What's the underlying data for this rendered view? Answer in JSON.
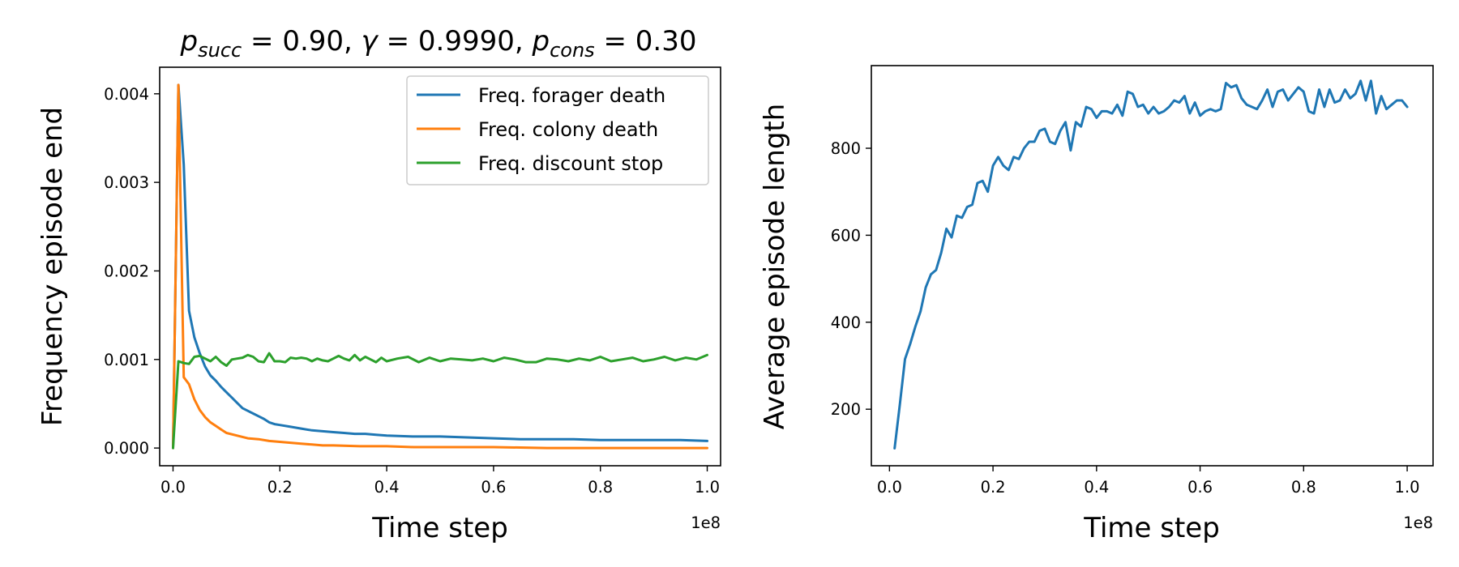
{
  "chart_data": [
    {
      "type": "line",
      "title_parts": {
        "v1": "p",
        "s1": "succ",
        "t1": " = 0.90, ",
        "v2": "γ",
        "t2": " = 0.9990, ",
        "v3": "p",
        "s3": "cons",
        "t3": " = 0.30"
      },
      "xlabel": "Time step",
      "ylabel": "Frequency episode end",
      "x_offset_label": "1e8",
      "xlim": [
        -0.025,
        1.025
      ],
      "ylim": [
        -0.0002,
        0.0043
      ],
      "x_ticks": [
        0.0,
        0.2,
        0.4,
        0.6,
        0.8,
        1.0
      ],
      "x_tick_labels": [
        "0.0",
        "0.2",
        "0.4",
        "0.6",
        "0.8",
        "1.0"
      ],
      "y_ticks": [
        0.0,
        0.001,
        0.002,
        0.003,
        0.004
      ],
      "y_tick_labels": [
        "0.000",
        "0.001",
        "0.002",
        "0.003",
        "0.004"
      ],
      "grid": false,
      "legend_position": "top-right",
      "series": [
        {
          "name": "Freq. forager death",
          "color": "#1f77b4",
          "x": [
            0,
            0.01,
            0.02,
            0.03,
            0.04,
            0.05,
            0.06,
            0.07,
            0.08,
            0.09,
            0.1,
            0.11,
            0.12,
            0.13,
            0.14,
            0.15,
            0.16,
            0.17,
            0.18,
            0.19,
            0.2,
            0.22,
            0.24,
            0.26,
            0.28,
            0.3,
            0.32,
            0.34,
            0.36,
            0.38,
            0.4,
            0.45,
            0.5,
            0.55,
            0.6,
            0.65,
            0.7,
            0.75,
            0.8,
            0.85,
            0.9,
            0.95,
            1.0
          ],
          "values": [
            0.0,
            0.0041,
            0.0032,
            0.00155,
            0.00125,
            0.00107,
            0.00092,
            0.00082,
            0.00076,
            0.00069,
            0.00063,
            0.00057,
            0.00051,
            0.00045,
            0.00042,
            0.00039,
            0.00036,
            0.00033,
            0.00029,
            0.00027,
            0.00026,
            0.00024,
            0.00022,
            0.0002,
            0.00019,
            0.00018,
            0.00017,
            0.00016,
            0.00016,
            0.00015,
            0.00014,
            0.00013,
            0.00013,
            0.00012,
            0.00011,
            0.0001,
            0.0001,
            0.0001,
            9e-05,
            9e-05,
            9e-05,
            9e-05,
            8e-05
          ]
        },
        {
          "name": "Freq. colony death",
          "color": "#ff7f0e",
          "x": [
            0,
            0.01,
            0.02,
            0.03,
            0.04,
            0.05,
            0.06,
            0.07,
            0.08,
            0.09,
            0.1,
            0.12,
            0.14,
            0.16,
            0.18,
            0.2,
            0.22,
            0.24,
            0.26,
            0.28,
            0.3,
            0.35,
            0.4,
            0.45,
            0.5,
            0.6,
            0.7,
            0.8,
            0.9,
            1.0
          ],
          "values": [
            0.0,
            0.0041,
            0.0008,
            0.00072,
            0.00055,
            0.00043,
            0.00035,
            0.00029,
            0.00025,
            0.00021,
            0.00017,
            0.00014,
            0.00011,
            0.0001,
            8e-05,
            7e-05,
            6e-05,
            5e-05,
            4e-05,
            3e-05,
            3e-05,
            2e-05,
            2e-05,
            1e-05,
            1e-05,
            1e-05,
            0.0,
            0.0,
            0.0,
            0.0
          ]
        },
        {
          "name": "Freq. discount stop",
          "color": "#2ca02c",
          "x": [
            0,
            0.01,
            0.02,
            0.03,
            0.04,
            0.05,
            0.06,
            0.07,
            0.08,
            0.09,
            0.1,
            0.11,
            0.12,
            0.13,
            0.14,
            0.15,
            0.16,
            0.17,
            0.18,
            0.19,
            0.2,
            0.21,
            0.22,
            0.23,
            0.24,
            0.25,
            0.26,
            0.27,
            0.28,
            0.29,
            0.3,
            0.31,
            0.32,
            0.33,
            0.34,
            0.35,
            0.36,
            0.37,
            0.38,
            0.39,
            0.4,
            0.42,
            0.44,
            0.46,
            0.48,
            0.5,
            0.52,
            0.54,
            0.56,
            0.58,
            0.6,
            0.62,
            0.64,
            0.66,
            0.68,
            0.7,
            0.72,
            0.74,
            0.76,
            0.78,
            0.8,
            0.82,
            0.84,
            0.86,
            0.88,
            0.9,
            0.92,
            0.94,
            0.96,
            0.98,
            1.0
          ],
          "values": [
            0.0,
            0.00098,
            0.00096,
            0.00095,
            0.00103,
            0.00104,
            0.00101,
            0.00098,
            0.00103,
            0.00097,
            0.00093,
            0.001,
            0.00101,
            0.00102,
            0.00105,
            0.00103,
            0.00098,
            0.00097,
            0.00107,
            0.00098,
            0.00098,
            0.00097,
            0.00102,
            0.00101,
            0.00102,
            0.00101,
            0.00098,
            0.00101,
            0.00099,
            0.00098,
            0.00101,
            0.00104,
            0.00101,
            0.00099,
            0.00105,
            0.00099,
            0.00103,
            0.001,
            0.00097,
            0.00102,
            0.00098,
            0.00101,
            0.00103,
            0.00097,
            0.00102,
            0.00098,
            0.00101,
            0.001,
            0.00099,
            0.00101,
            0.00098,
            0.00102,
            0.001,
            0.00097,
            0.00097,
            0.00101,
            0.001,
            0.00098,
            0.00101,
            0.00099,
            0.00103,
            0.00098,
            0.001,
            0.00102,
            0.00098,
            0.001,
            0.00103,
            0.00099,
            0.00102,
            0.001,
            0.00105
          ]
        }
      ]
    },
    {
      "type": "line",
      "xlabel": "Time step",
      "ylabel": "Average episode length",
      "x_offset_label": "1e8",
      "xlim": [
        -0.035,
        1.05
      ],
      "ylim": [
        70,
        990
      ],
      "x_ticks": [
        0.0,
        0.2,
        0.4,
        0.6,
        0.8,
        1.0
      ],
      "x_tick_labels": [
        "0.0",
        "0.2",
        "0.4",
        "0.6",
        "0.8",
        "1.0"
      ],
      "y_ticks": [
        200,
        400,
        600,
        800
      ],
      "y_tick_labels": [
        "200",
        "400",
        "600",
        "800"
      ],
      "grid": false,
      "series": [
        {
          "color": "#1f77b4",
          "x": [
            0.01,
            0.02,
            0.03,
            0.04,
            0.05,
            0.06,
            0.07,
            0.08,
            0.09,
            0.1,
            0.11,
            0.12,
            0.13,
            0.14,
            0.15,
            0.16,
            0.17,
            0.18,
            0.19,
            0.2,
            0.21,
            0.22,
            0.23,
            0.24,
            0.25,
            0.26,
            0.27,
            0.28,
            0.29,
            0.3,
            0.31,
            0.32,
            0.33,
            0.34,
            0.35,
            0.36,
            0.37,
            0.38,
            0.39,
            0.4,
            0.41,
            0.42,
            0.43,
            0.44,
            0.45,
            0.46,
            0.47,
            0.48,
            0.49,
            0.5,
            0.51,
            0.52,
            0.53,
            0.54,
            0.55,
            0.56,
            0.57,
            0.58,
            0.59,
            0.6,
            0.61,
            0.62,
            0.63,
            0.64,
            0.65,
            0.66,
            0.67,
            0.68,
            0.69,
            0.7,
            0.71,
            0.72,
            0.73,
            0.74,
            0.75,
            0.76,
            0.77,
            0.78,
            0.79,
            0.8,
            0.81,
            0.82,
            0.83,
            0.84,
            0.85,
            0.86,
            0.87,
            0.88,
            0.89,
            0.9,
            0.91,
            0.92,
            0.93,
            0.94,
            0.95,
            0.96,
            0.97,
            0.98,
            0.99,
            1.0
          ],
          "values": [
            110,
            210,
            315,
            350,
            390,
            425,
            480,
            510,
            520,
            560,
            615,
            595,
            645,
            640,
            665,
            670,
            720,
            725,
            700,
            760,
            780,
            760,
            750,
            780,
            775,
            800,
            815,
            815,
            840,
            845,
            815,
            810,
            840,
            860,
            795,
            860,
            850,
            895,
            890,
            870,
            885,
            885,
            880,
            900,
            875,
            930,
            925,
            895,
            900,
            880,
            895,
            880,
            885,
            895,
            910,
            905,
            920,
            880,
            905,
            875,
            885,
            890,
            885,
            890,
            950,
            940,
            945,
            915,
            900,
            895,
            890,
            910,
            935,
            895,
            930,
            935,
            910,
            925,
            940,
            930,
            885,
            880,
            935,
            895,
            935,
            905,
            910,
            935,
            915,
            925,
            955,
            910,
            955,
            880,
            920,
            890,
            900,
            910,
            910,
            895
          ]
        }
      ]
    }
  ]
}
